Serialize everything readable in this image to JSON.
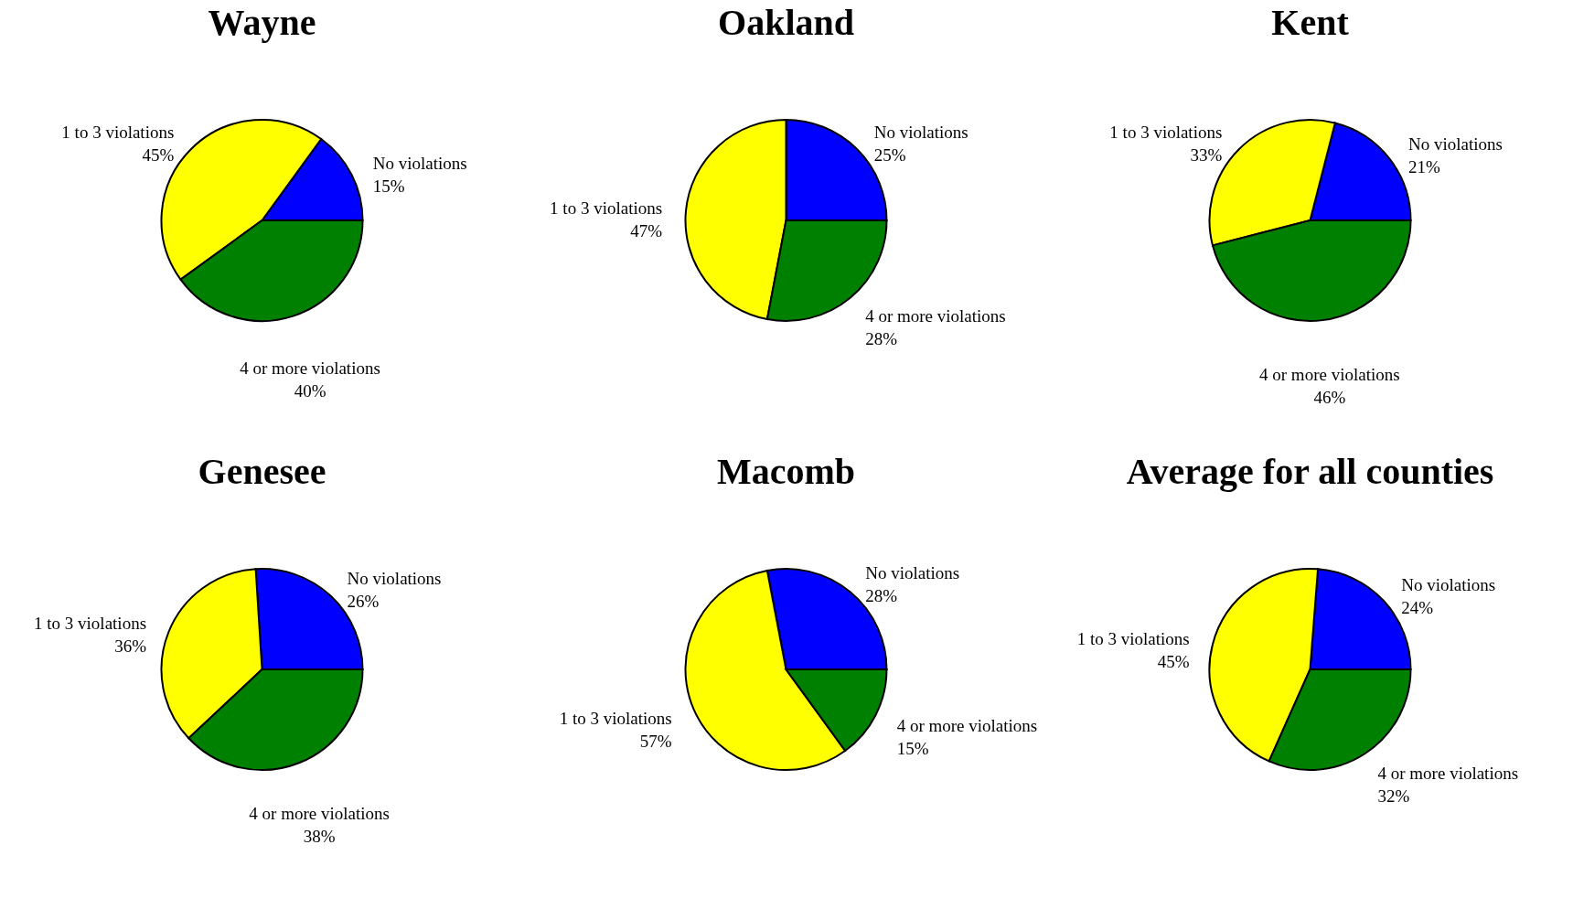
{
  "chart_data": [
    {
      "type": "pie",
      "title": "Wayne",
      "categories": [
        "No violations",
        "1 to 3 violations",
        "4 or more violations"
      ],
      "values": [
        15,
        45,
        40
      ],
      "value_labels": [
        "15%",
        "45%",
        "40%"
      ],
      "colors": [
        "#0000ff",
        "#ffff00",
        "#008000"
      ]
    },
    {
      "type": "pie",
      "title": "Oakland",
      "categories": [
        "No violations",
        "1 to 3 violations",
        "4 or more violations"
      ],
      "values": [
        25,
        47,
        28
      ],
      "value_labels": [
        "25%",
        "47%",
        "28%"
      ],
      "colors": [
        "#0000ff",
        "#ffff00",
        "#008000"
      ]
    },
    {
      "type": "pie",
      "title": "Kent",
      "categories": [
        "No violations",
        "1 to 3 violations",
        "4 or more violations"
      ],
      "values": [
        21,
        33,
        46
      ],
      "value_labels": [
        "21%",
        "33%",
        "46%"
      ],
      "colors": [
        "#0000ff",
        "#ffff00",
        "#008000"
      ]
    },
    {
      "type": "pie",
      "title": "Genesee",
      "categories": [
        "No violations",
        "1 to 3 violations",
        "4 or more violations"
      ],
      "values": [
        26,
        36,
        38
      ],
      "value_labels": [
        "26%",
        "36%",
        "38%"
      ],
      "colors": [
        "#0000ff",
        "#ffff00",
        "#008000"
      ]
    },
    {
      "type": "pie",
      "title": "Macomb",
      "categories": [
        "No violations",
        "1 to 3 violations",
        "4 or more violations"
      ],
      "values": [
        28,
        57,
        15
      ],
      "value_labels": [
        "28%",
        "57%",
        "15%"
      ],
      "colors": [
        "#0000ff",
        "#ffff00",
        "#008000"
      ]
    },
    {
      "type": "pie",
      "title": "Average for all counties",
      "categories": [
        "No violations",
        "1 to 3 violations",
        "4 or more violations"
      ],
      "values": [
        24,
        45,
        32
      ],
      "value_labels": [
        "24%",
        "45%",
        "32%"
      ],
      "colors": [
        "#0000ff",
        "#ffff00",
        "#008000"
      ]
    }
  ]
}
